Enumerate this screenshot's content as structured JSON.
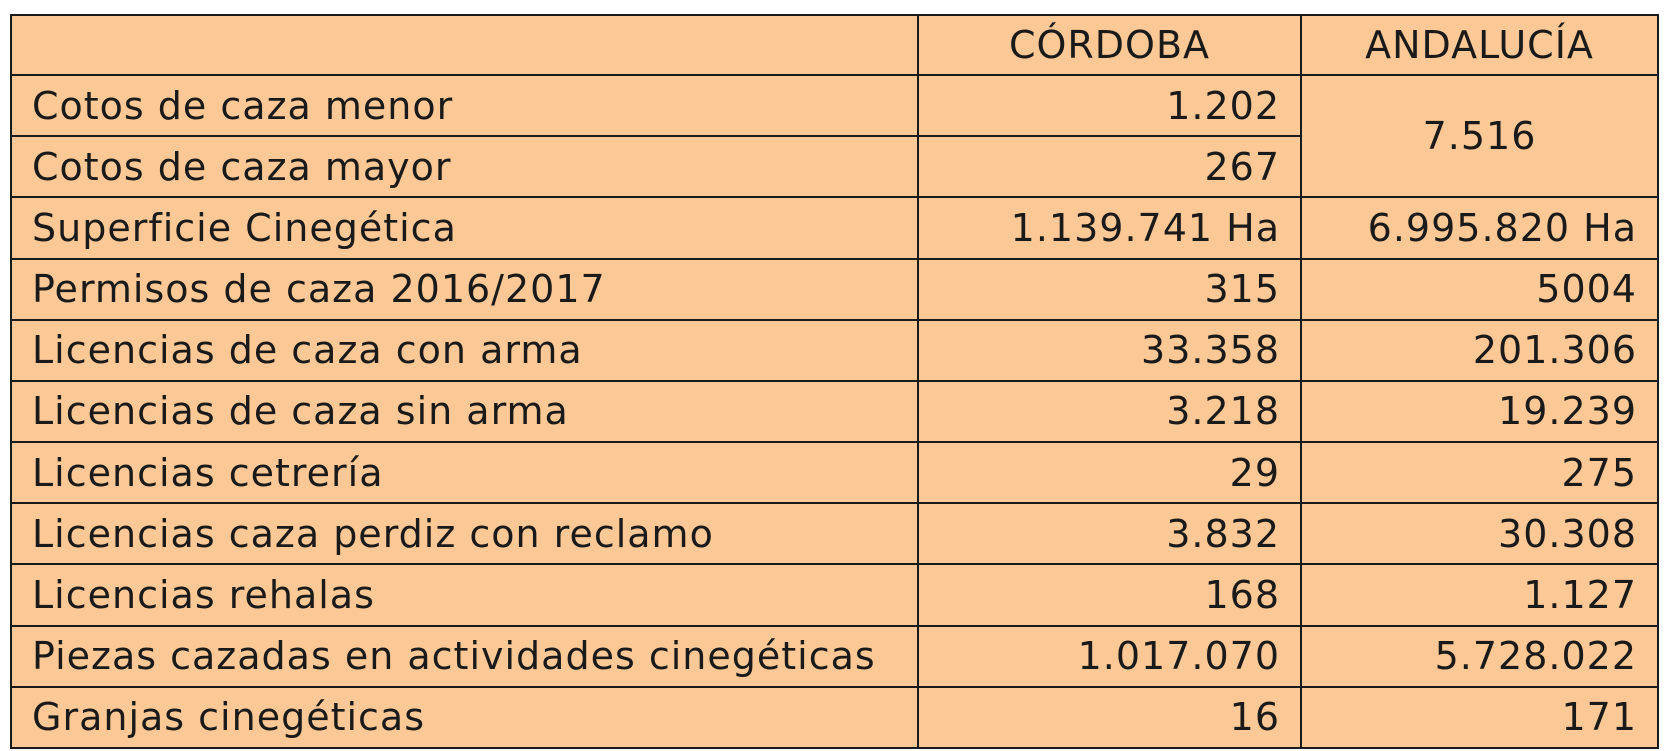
{
  "table": {
    "headers": [
      "",
      "CÓRDOBA",
      "ANDALUCÍA"
    ],
    "rows": [
      {
        "label": "Cotos de caza menor",
        "cordoba": "1.202",
        "andalucia": "7.516"
      },
      {
        "label": "Cotos de caza mayor",
        "cordoba": "267",
        "andalucia": null
      },
      {
        "label": "Superficie Cinegética",
        "cordoba": "1.139.741 Ha",
        "andalucia": "6.995.820 Ha"
      },
      {
        "label": "Permisos de caza 2016/2017",
        "cordoba": "315",
        "andalucia": "5004"
      },
      {
        "label": "Licencias de caza con arma",
        "cordoba": "33.358",
        "andalucia": "201.306"
      },
      {
        "label": "Licencias de caza sin arma",
        "cordoba": "3.218",
        "andalucia": "19.239"
      },
      {
        "label": "Licencias cetrería",
        "cordoba": "29",
        "andalucia": "275"
      },
      {
        "label": "Licencias caza perdiz con reclamo",
        "cordoba": "3.832",
        "andalucia": "30.308"
      },
      {
        "label": "Licencias rehalas",
        "cordoba": "168",
        "andalucia": "1.127"
      },
      {
        "label": "Piezas cazadas en actividades cinegéticas",
        "cordoba": "1.017.070",
        "andalucia": "5.728.022"
      },
      {
        "label": "Granjas cinegéticas",
        "cordoba": "16",
        "andalucia": "171"
      }
    ]
  },
  "colors": {
    "cell_background": "#fcc996",
    "border": "#1a1a1a",
    "text": "#1a1a1a"
  }
}
